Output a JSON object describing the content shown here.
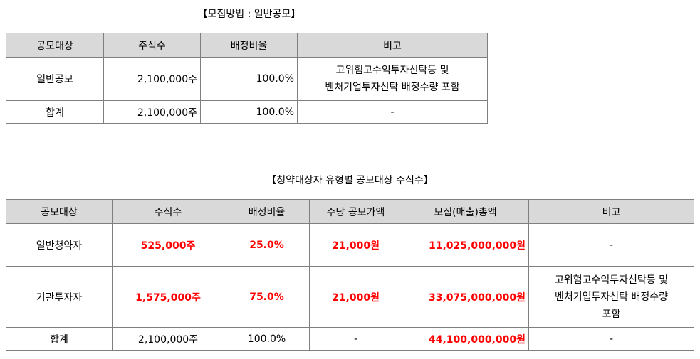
{
  "table1": {
    "title": "【모집방법 : 일반공모】",
    "headers": [
      "공모대상",
      "주식수",
      "배정비율",
      "비고"
    ],
    "rows": [
      [
        "일반공모",
        "2,100,000주",
        "100.0%",
        "고위험고수익투자신탁등 및\n벤처기업투자신탁 배정수량 포함"
      ],
      [
        "합계",
        "2,100,000주",
        "100.0%",
        "-"
      ]
    ]
  },
  "table2": {
    "title": "【청약대상자 유형별 공모대상 주식수】",
    "headers": [
      "공모대상",
      "주식수",
      "배정비율",
      "주당 공모가액",
      "모집(매출)총액",
      "비고"
    ],
    "rows": [
      [
        "일반청약자",
        "525,000주",
        "25.0%",
        "21,000원",
        "11,025,000,000원",
        "-"
      ],
      [
        "기관투자자",
        "1,575,000주",
        "75.0%",
        "21,000원",
        "33,075,000,000원",
        "고위험고수익투자신탁등 및\n벤처기업투자신탁 배정수량\n포함"
      ],
      [
        "합계",
        "2,100,000주",
        "100.0%",
        "-",
        "44,100,000,000원",
        "-"
      ]
    ]
  },
  "colors": {
    "header_bg": "#d9d9d9",
    "border": "#7f7f7f",
    "highlight": "#ff0000"
  }
}
